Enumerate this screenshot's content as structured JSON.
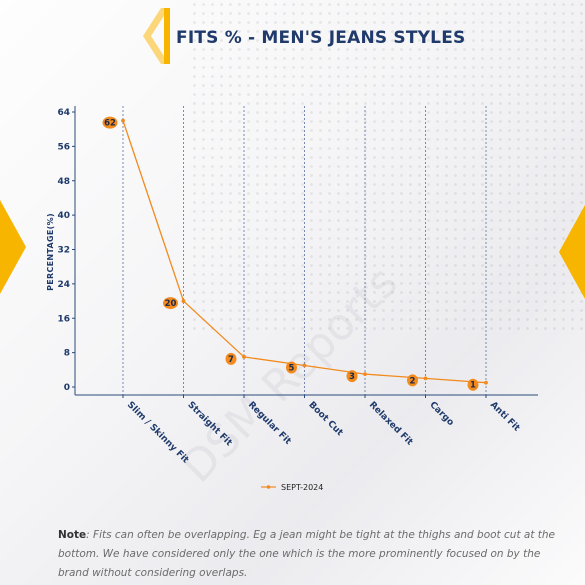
{
  "header": {
    "title": "FITS % - MEN'S JEANS STYLES"
  },
  "colors": {
    "accent": "#f7b500",
    "title": "#1f3a6b",
    "series": "#f28a1e",
    "label_bubble": "#f28a1e"
  },
  "watermark": "DSM Reports",
  "chart_data": {
    "type": "line",
    "categories": [
      "Slim / Skinny Fit",
      "Straight Fit",
      "Regular Fit",
      "Boot Cut",
      "Relaxed Fit",
      "Cargo",
      "Anti Fit"
    ],
    "series": [
      {
        "name": "SEPT-2024",
        "values": [
          62,
          20,
          7,
          5,
          3,
          2,
          1
        ]
      }
    ],
    "xlabel": "",
    "ylabel": "PERCENTAGE(%)",
    "ylim": [
      -2,
      64
    ],
    "yticks": [
      0,
      8,
      16,
      24,
      32,
      40,
      48,
      56,
      64
    ],
    "grid": "vertical dashed at categories",
    "legend": "bottom-center"
  },
  "note": {
    "lead": "Note",
    "text": ": Fits can often be overlapping. Eg a jean might be tight at the thighs and boot cut at the bottom. We have considered only the one which is the more prominently focused on by the brand without considering overlaps."
  }
}
